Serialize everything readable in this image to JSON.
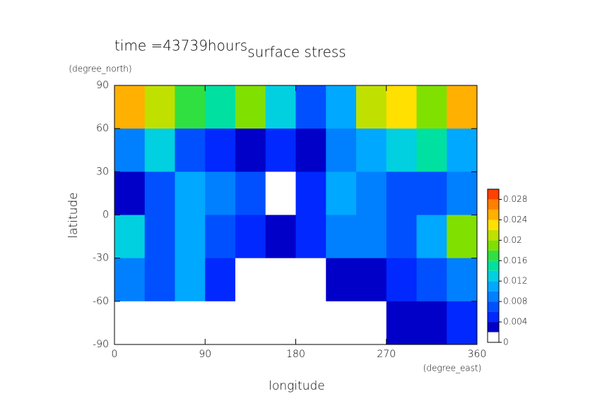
{
  "chart_data": {
    "type": "contour",
    "title": "surface stress",
    "subtitle": "time =43739hours",
    "x_label": "longitude",
    "y_label": "latitude",
    "x_unit": "(degree_east)",
    "y_unit": "(degree_north)",
    "xlim": [
      0,
      360
    ],
    "ylim": [
      -90,
      90
    ],
    "xticks": [
      0,
      90,
      180,
      270,
      360
    ],
    "yticks": [
      -90,
      -60,
      -30,
      0,
      30,
      60,
      90
    ],
    "x": [
      15,
      45,
      75,
      105,
      135,
      165,
      195,
      225,
      255,
      285,
      315,
      345
    ],
    "y": [
      75,
      45,
      15,
      -15,
      -45,
      -75
    ],
    "z": [
      [
        0.024,
        0.02,
        0.016,
        0.014,
        0.018,
        0.012,
        0.006,
        0.01,
        0.02,
        0.022,
        0.018,
        0.024
      ],
      [
        0.008,
        0.012,
        0.006,
        0.004,
        0.003,
        0.004,
        0.002,
        0.008,
        0.01,
        0.012,
        0.014,
        0.01
      ],
      [
        0.003,
        0.006,
        0.01,
        0.008,
        0.006,
        0.001,
        0.004,
        0.01,
        0.008,
        0.006,
        0.006,
        0.008
      ],
      [
        0.012,
        0.006,
        0.01,
        0.006,
        0.005,
        0.002,
        0.004,
        0.008,
        0.008,
        0.006,
        0.01,
        0.018
      ],
      [
        0.008,
        0.006,
        0.01,
        0.004,
        0.001,
        0.001,
        0,
        0.002,
        0.003,
        0.004,
        0.006,
        0.008
      ],
      [
        0,
        0,
        0,
        0,
        0,
        0,
        0,
        0,
        0,
        0.002,
        0.002,
        0.004
      ]
    ],
    "levels": [
      0,
      0.002,
      0.004,
      0.006,
      0.008,
      0.01,
      0.012,
      0.014,
      0.016,
      0.018,
      0.02,
      0.022,
      0.024,
      0.026,
      0.028,
      0.03
    ],
    "colors": [
      "#ffffff",
      "#0000c8",
      "#0028ff",
      "#0050ff",
      "#0080ff",
      "#00a8ff",
      "#00d0e0",
      "#00e0a0",
      "#30e040",
      "#80e000",
      "#c0e000",
      "#ffe000",
      "#ffb000",
      "#ff8000",
      "#ff4000"
    ],
    "colorbar_ticks": [
      0,
      0.004,
      0.008,
      0.012,
      0.016,
      0.02,
      0.024,
      0.028
    ]
  }
}
